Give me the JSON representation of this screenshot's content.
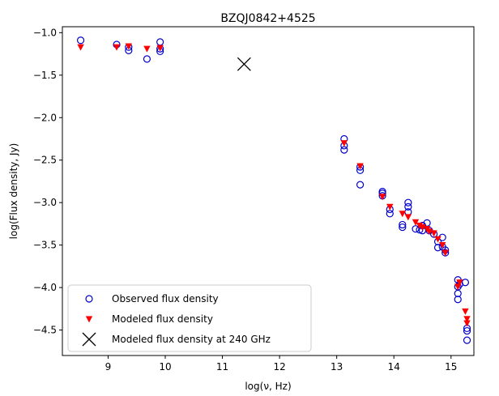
{
  "chart_data": {
    "type": "scatter",
    "title": "BZQJ0842+4525",
    "xlabel": "log(ν, Hz)",
    "ylabel": "log(Flux density, Jy)",
    "xlim": [
      8.2,
      15.4
    ],
    "ylim": [
      -4.8,
      -0.93
    ],
    "xticks": [
      9,
      10,
      11,
      12,
      13,
      14,
      15
    ],
    "yticks": [
      -1.0,
      -1.5,
      -2.0,
      -2.5,
      -3.0,
      -3.5,
      -4.0,
      -4.5
    ],
    "xtick_labels": [
      "9",
      "10",
      "11",
      "12",
      "13",
      "14",
      "15"
    ],
    "ytick_labels": [
      "−1.0",
      "−1.5",
      "−2.0",
      "−2.5",
      "−3.0",
      "−3.5",
      "−4.0",
      "−4.5"
    ],
    "grid": false,
    "legend_position": "lower-left",
    "series": [
      {
        "name": "Observed flux density",
        "marker": "open-circle",
        "color": "#0000cc",
        "points": [
          [
            8.52,
            -1.09
          ],
          [
            9.15,
            -1.14
          ],
          [
            9.36,
            -1.17
          ],
          [
            9.36,
            -1.21
          ],
          [
            9.68,
            -1.31
          ],
          [
            9.91,
            -1.11
          ],
          [
            9.91,
            -1.19
          ],
          [
            9.91,
            -1.22
          ],
          [
            13.13,
            -2.25
          ],
          [
            13.13,
            -2.33
          ],
          [
            13.13,
            -2.38
          ],
          [
            13.41,
            -2.58
          ],
          [
            13.41,
            -2.62
          ],
          [
            13.41,
            -2.79
          ],
          [
            13.8,
            -2.87
          ],
          [
            13.8,
            -2.89
          ],
          [
            13.8,
            -2.92
          ],
          [
            13.93,
            -3.08
          ],
          [
            13.93,
            -3.13
          ],
          [
            14.15,
            -3.26
          ],
          [
            14.15,
            -3.29
          ],
          [
            14.25,
            -3.0
          ],
          [
            14.25,
            -3.05
          ],
          [
            14.25,
            -3.11
          ],
          [
            14.38,
            -3.31
          ],
          [
            14.45,
            -3.32
          ],
          [
            14.5,
            -3.27
          ],
          [
            14.5,
            -3.33
          ],
          [
            14.58,
            -3.24
          ],
          [
            14.62,
            -3.33
          ],
          [
            14.7,
            -3.37
          ],
          [
            14.77,
            -3.46
          ],
          [
            14.77,
            -3.53
          ],
          [
            14.85,
            -3.41
          ],
          [
            14.85,
            -3.52
          ],
          [
            14.9,
            -3.56
          ],
          [
            14.9,
            -3.59
          ],
          [
            15.12,
            -3.91
          ],
          [
            15.12,
            -3.99
          ],
          [
            15.12,
            -4.07
          ],
          [
            15.12,
            -4.14
          ],
          [
            15.15,
            -3.96
          ],
          [
            15.25,
            -3.94
          ],
          [
            15.28,
            -4.48
          ],
          [
            15.28,
            -4.51
          ],
          [
            15.28,
            -4.62
          ]
        ]
      },
      {
        "name": "Modeled flux density",
        "marker": "filled-triangle-down",
        "color": "#ff0000",
        "points": [
          [
            8.52,
            -1.17
          ],
          [
            9.15,
            -1.17
          ],
          [
            9.36,
            -1.16
          ],
          [
            9.68,
            -1.19
          ],
          [
            9.91,
            -1.18
          ],
          [
            13.13,
            -2.3
          ],
          [
            13.41,
            -2.57
          ],
          [
            13.8,
            -2.93
          ],
          [
            13.93,
            -3.05
          ],
          [
            14.15,
            -3.13
          ],
          [
            14.25,
            -3.17
          ],
          [
            14.38,
            -3.23
          ],
          [
            14.45,
            -3.27
          ],
          [
            14.5,
            -3.29
          ],
          [
            14.58,
            -3.31
          ],
          [
            14.62,
            -3.34
          ],
          [
            14.7,
            -3.36
          ],
          [
            14.77,
            -3.43
          ],
          [
            14.85,
            -3.5
          ],
          [
            14.9,
            -3.59
          ],
          [
            15.12,
            -3.99
          ],
          [
            15.15,
            -3.94
          ],
          [
            15.25,
            -4.28
          ],
          [
            15.28,
            -4.37
          ],
          [
            15.28,
            -4.42
          ]
        ]
      },
      {
        "name": "Modeled flux density at 240 GHz",
        "marker": "x",
        "color": "#000000",
        "points": [
          [
            11.38,
            -1.37
          ]
        ]
      }
    ]
  }
}
